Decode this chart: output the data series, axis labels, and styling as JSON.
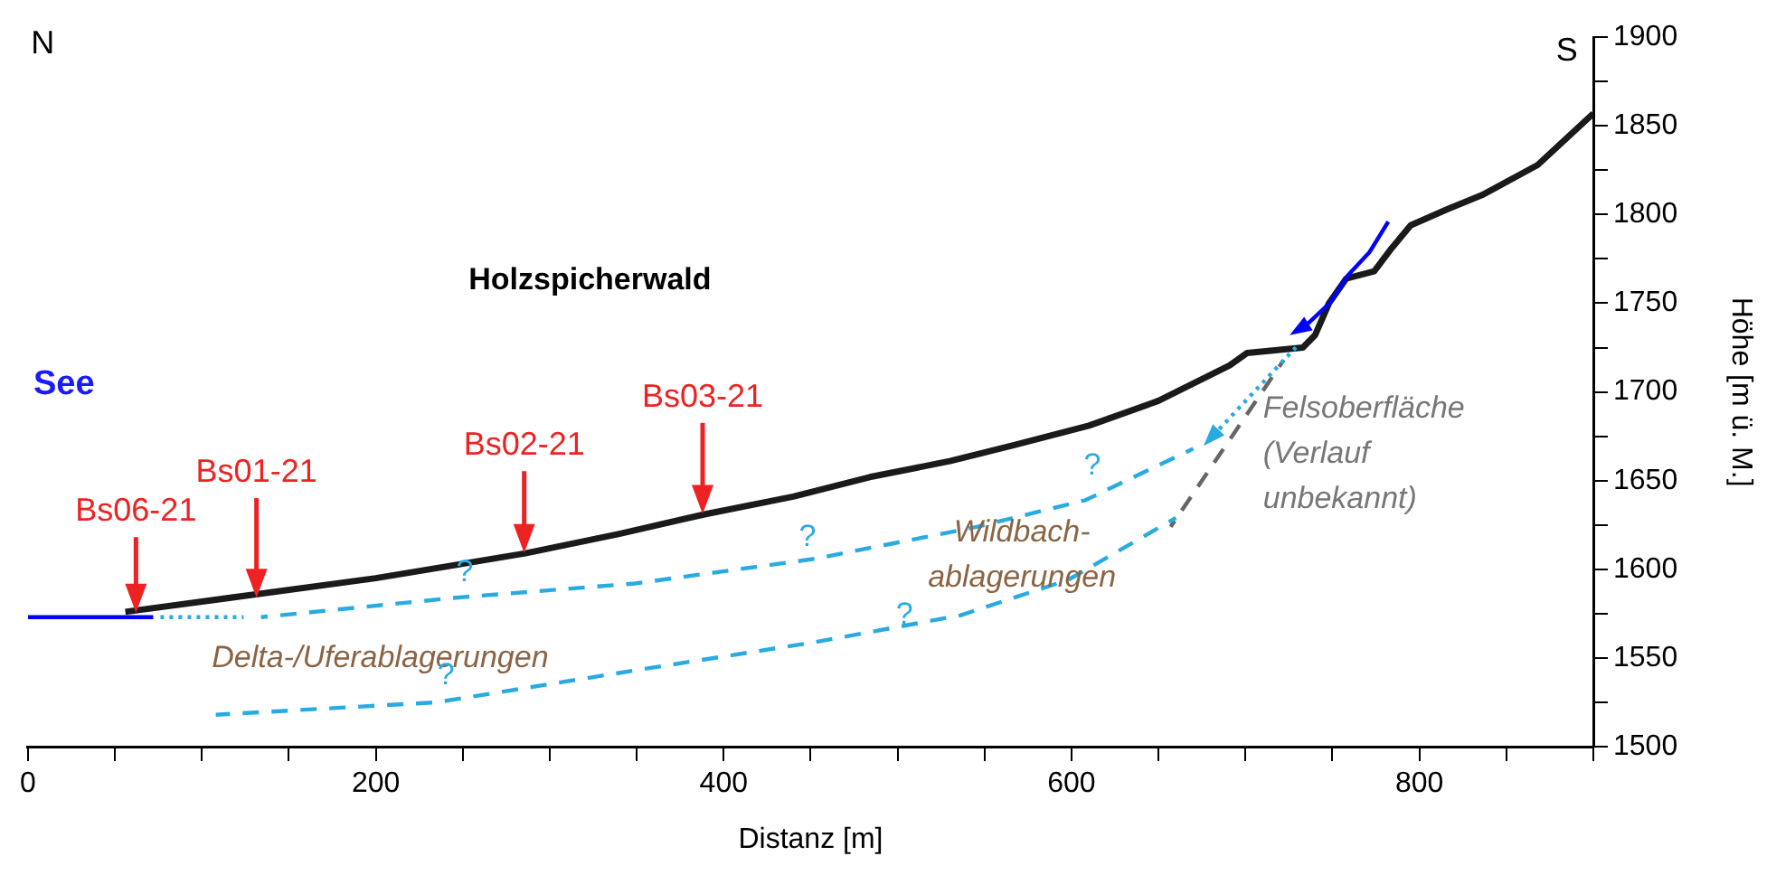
{
  "chart_data": {
    "type": "line",
    "xlabel": "Distanz [m]",
    "ylabel": "Höhe [m ü. M.]",
    "xlim": [
      0,
      900
    ],
    "ylim": [
      1500,
      1900
    ],
    "xticks": [
      0,
      {
        "value": 50,
        "label": null
      },
      {
        "value": 100,
        "label": null
      },
      {
        "value": 150,
        "label": null
      },
      200,
      {
        "value": 250,
        "label": null
      },
      {
        "value": 300,
        "label": null
      },
      {
        "value": 350,
        "label": null
      },
      400,
      {
        "value": 450,
        "label": null
      },
      {
        "value": 500,
        "label": null
      },
      {
        "value": 550,
        "label": null
      },
      600,
      {
        "value": 650,
        "label": null
      },
      {
        "value": 700,
        "label": null
      },
      {
        "value": 750,
        "label": null
      },
      800,
      {
        "value": 850,
        "label": null
      },
      {
        "value": 900,
        "label": null
      }
    ],
    "yticks": [
      1500,
      {
        "value": 1525,
        "label": null
      },
      1550,
      {
        "value": 1575,
        "label": null
      },
      1600,
      {
        "value": 1625,
        "label": null
      },
      1650,
      {
        "value": 1675,
        "label": null
      },
      1700,
      {
        "value": 1725,
        "label": null
      },
      1750,
      {
        "value": 1775,
        "label": null
      },
      1800,
      {
        "value": 1825,
        "label": null
      },
      1850,
      {
        "value": 1875,
        "label": null
      },
      1900
    ],
    "grid": false,
    "legend": false,
    "marker": "none",
    "series": [
      {
        "color": "#1a1a1a",
        "line_style": "solid",
        "x": [
          56,
          132,
          200,
          286,
          340,
          389,
          440,
          484,
          530,
          567,
          610,
          650,
          691,
          701,
          733,
          740,
          748,
          758,
          774,
          784,
          795,
          816,
          836,
          868,
          900
        ],
        "values": [
          1576,
          1586,
          1595,
          1609,
          1620,
          1631,
          1641,
          1652,
          1661,
          1670,
          1681,
          1695,
          1715,
          1722,
          1725,
          1732,
          1750,
          1764,
          1768,
          1781,
          1794,
          1803,
          1811,
          1828,
          1857
        ]
      },
      {
        "color": "#0000ff",
        "line_style": "solid",
        "x": [
          0,
          72
        ],
        "values": [
          1573,
          1573
        ]
      },
      {
        "color": "#29abe2",
        "line_style": "dotted",
        "x": [
          74,
          124
        ],
        "values": [
          1573,
          1573
        ]
      },
      {
        "color": "#29abe2",
        "line_style": "dashed",
        "x": [
          134,
          246,
          349,
          453,
          546,
          608,
          670
        ],
        "values": [
          1573,
          1584,
          1592,
          1606,
          1624,
          1639,
          1668
        ]
      },
      {
        "color": "#29abe2",
        "line_style": "dashed",
        "x": [
          108,
          235,
          349,
          453,
          536,
          598,
          660
        ],
        "values": [
          1518,
          1525,
          1543,
          1559,
          1574,
          1594,
          1629
        ]
      },
      {
        "color": "#666666",
        "line_style": "dashed",
        "x": [
          657,
          722
        ],
        "values": [
          1624,
          1718
        ]
      }
    ],
    "annotations": [
      "N",
      "S",
      "See",
      "Holzspicherwald",
      "Bs06-21",
      "Bs01-21",
      "Bs02-21",
      "Bs03-21",
      "Delta-/Uferablagerungen",
      "Wildbach-\nablagerungen",
      "Felsoberfläche\n(Verlauf\nunbekannt)",
      "?",
      "?",
      "?",
      "?",
      "?"
    ]
  }
}
